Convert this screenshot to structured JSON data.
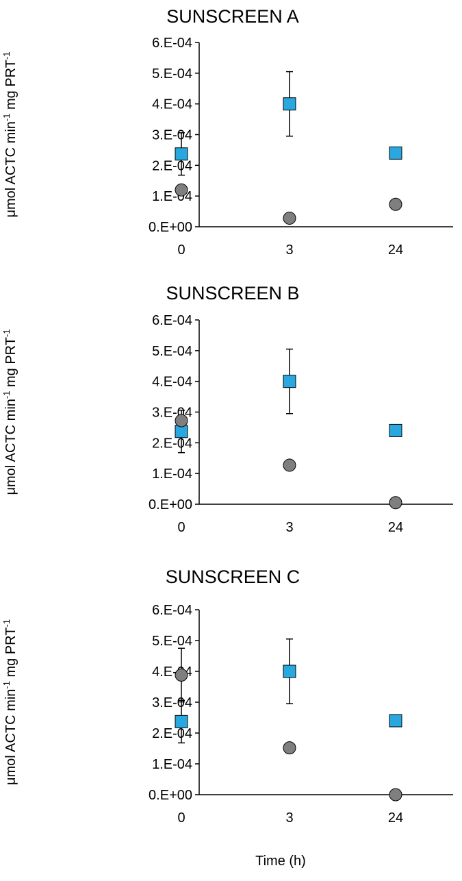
{
  "figure": {
    "xlabel": "Time (h)"
  },
  "chart_data": [
    {
      "type": "scatter",
      "title": "SUNSCREEN A",
      "x_categories": [
        "0",
        "3",
        "24"
      ],
      "ylim": [
        0,
        0.0006
      ],
      "ytick_values": [
        0,
        0.0001,
        0.0002,
        0.0003,
        0.0004,
        0.0005,
        0.0006
      ],
      "ytick_labels": [
        "0.E+00",
        "1.E-04",
        "2.E-04",
        "3.E-04",
        "4.E-04",
        "5.E-04",
        "6.E-04"
      ],
      "ylabel": {
        "pre": "μmol ACTC min",
        "sup1": "-1",
        "mid": " mg PRT",
        "sup2": "-1"
      },
      "grid": false,
      "series": [
        {
          "marker": "square",
          "color": "#29a8e0",
          "values": [
            0.000237,
            0.0004,
            0.00024
          ],
          "errors": [
            6.9e-05,
            0.000105,
            1.7e-05
          ]
        },
        {
          "marker": "circle",
          "color": "#7f7f7f",
          "values": [
            0.00012,
            2.8e-05,
            7.3e-05
          ],
          "errors": [
            0,
            0,
            0
          ]
        }
      ]
    },
    {
      "type": "scatter",
      "title": "SUNSCREEN B",
      "x_categories": [
        "0",
        "3",
        "24"
      ],
      "ylim": [
        0,
        0.0006
      ],
      "ytick_values": [
        0,
        0.0001,
        0.0002,
        0.0003,
        0.0004,
        0.0005,
        0.0006
      ],
      "ytick_labels": [
        "0.E+00",
        "1.E-04",
        "2.E-04",
        "3.E-04",
        "4.E-04",
        "5.E-04",
        "6.E-04"
      ],
      "ylabel": {
        "pre": "μmol ACTC min",
        "sup1": "-1",
        "mid": " mg PRT",
        "sup2": "-1"
      },
      "grid": false,
      "series": [
        {
          "marker": "square",
          "color": "#29a8e0",
          "values": [
            0.000237,
            0.0004,
            0.00024
          ],
          "errors": [
            6.9e-05,
            0.000105,
            1.7e-05
          ]
        },
        {
          "marker": "circle",
          "color": "#7f7f7f",
          "values": [
            0.000272,
            0.000127,
            5e-06
          ],
          "errors": [
            0,
            0,
            0
          ]
        }
      ]
    },
    {
      "type": "scatter",
      "title": "SUNSCREEN C",
      "x_categories": [
        "0",
        "3",
        "24"
      ],
      "ylim": [
        0,
        0.0006
      ],
      "ytick_values": [
        0,
        0.0001,
        0.0002,
        0.0003,
        0.0004,
        0.0005,
        0.0006
      ],
      "ytick_labels": [
        "0.E+00",
        "1.E-04",
        "2.E-04",
        "3.E-04",
        "4.E-04",
        "5.E-04",
        "6.E-04"
      ],
      "ylabel": {
        "pre": "μmol ACTC min",
        "sup1": "-1",
        "mid": " mg PRT",
        "sup2": "-1"
      },
      "grid": false,
      "series": [
        {
          "marker": "square",
          "color": "#29a8e0",
          "values": [
            0.000237,
            0.0004,
            0.00024
          ],
          "errors": [
            6.9e-05,
            0.000105,
            1.7e-05
          ]
        },
        {
          "marker": "circle",
          "color": "#7f7f7f",
          "values": [
            0.000388,
            0.000152,
            0.0
          ],
          "errors": [
            8.7e-05,
            0,
            0
          ]
        }
      ]
    }
  ]
}
